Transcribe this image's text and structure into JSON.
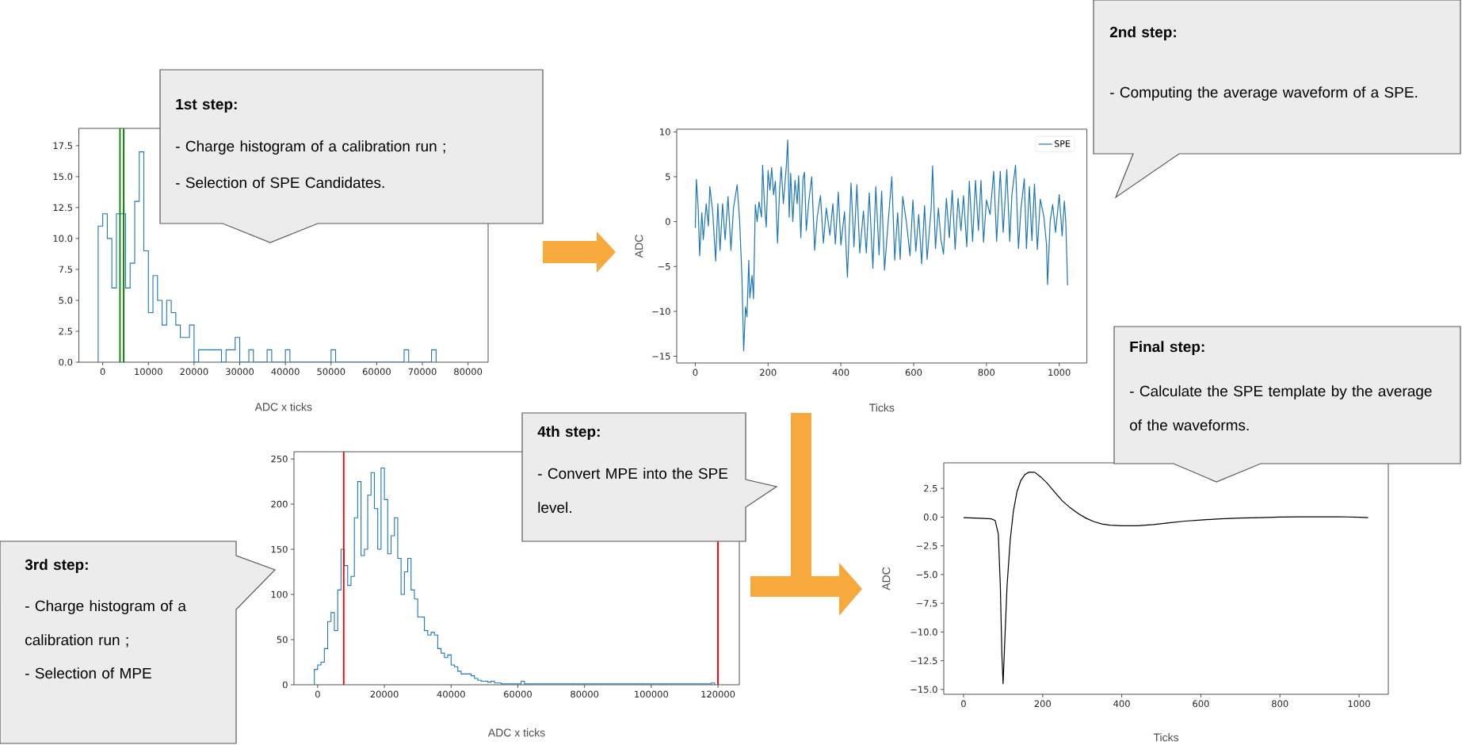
{
  "chart_data": [
    {
      "type": "histogram",
      "xlabel": "ADC x ticks",
      "color": "#1f77b4",
      "bins": [
        -1000,
        0,
        1000,
        2000,
        3000,
        4000,
        5000,
        6000,
        7000,
        8000,
        9000,
        10000,
        11000,
        12000,
        13000,
        14000,
        15000,
        16000,
        17000,
        18000,
        19000,
        20000,
        21000,
        22000,
        23000,
        24000,
        25000,
        26000,
        27000,
        28000,
        29000,
        30000,
        31000,
        32000,
        33000,
        34000,
        35000,
        36000,
        37000,
        38000,
        39000,
        40000,
        41000,
        42000,
        43000,
        44000,
        45000,
        46000,
        47000,
        48000,
        49000,
        50000,
        51000,
        52000,
        53000,
        54000,
        55000,
        56000,
        57000,
        58000,
        59000,
        60000,
        61000,
        62000,
        63000,
        64000,
        65000,
        66000,
        67000,
        68000,
        69000,
        70000,
        71000,
        72000,
        73000
      ],
      "values": [
        11,
        12,
        10,
        6,
        12,
        12,
        6,
        8,
        13,
        17,
        9,
        4,
        7,
        5,
        3,
        5,
        4,
        3,
        2,
        2,
        3,
        0,
        1,
        1,
        1,
        1,
        1,
        0,
        1,
        1,
        2,
        0,
        0,
        1,
        0,
        0,
        0,
        1,
        0,
        0,
        0,
        1,
        0,
        0,
        0,
        0,
        0,
        0,
        0,
        0,
        0,
        1,
        0,
        0,
        0,
        0,
        0,
        0,
        0,
        0,
        0,
        0,
        0,
        0,
        0,
        0,
        0,
        1,
        0,
        0,
        0,
        0,
        0,
        1
      ],
      "xlim": [
        -5230,
        84400
      ],
      "ylim": [
        0,
        18.9
      ],
      "xticks": [
        0,
        10000,
        20000,
        30000,
        40000,
        50000,
        60000,
        70000,
        80000
      ],
      "yticks": [
        {
          "value": 0,
          "label": "0.0"
        },
        2.5,
        {
          "value": 5,
          "label": "5.0"
        },
        7.5,
        {
          "value": 10,
          "label": "10.0"
        },
        12.5,
        {
          "value": 15,
          "label": "15.0"
        },
        17.5
      ],
      "ref_lines": [
        {
          "axis": "x",
          "value": 3800,
          "color": "#008000"
        },
        {
          "axis": "x",
          "value": 4600,
          "color": "#008000"
        }
      ],
      "annotations": [
        "1st step:",
        "- Charge histogram of a calibration run ;",
        "- Selection of SPE Candidates."
      ]
    },
    {
      "type": "line",
      "xlabel": "Ticks",
      "ylabel": "ADC",
      "legend": "top right",
      "x": [
        0,
        3,
        8,
        12,
        18,
        22,
        30,
        36,
        40,
        48,
        56,
        62,
        68,
        75,
        82,
        90,
        98,
        105,
        115,
        122,
        128,
        133,
        138,
        142,
        147,
        150,
        156,
        160,
        165,
        170,
        175,
        182,
        185,
        190,
        195,
        200,
        205,
        210,
        215,
        220,
        226,
        232,
        236,
        242,
        250,
        254,
        258,
        262,
        268,
        274,
        280,
        284,
        290,
        296,
        300,
        305,
        312,
        320,
        328,
        335,
        344,
        352,
        360,
        370,
        378,
        385,
        393,
        400,
        410,
        418,
        428,
        436,
        444,
        452,
        462,
        470,
        478,
        488,
        496,
        505,
        512,
        520,
        530,
        540,
        548,
        556,
        563,
        570,
        580,
        590,
        598,
        606,
        614,
        622,
        630,
        637,
        648,
        652,
        660,
        668,
        675,
        682,
        690,
        698,
        706,
        714,
        722,
        730,
        737,
        746,
        753,
        762,
        770,
        778,
        785,
        792,
        800,
        810,
        820,
        828,
        838,
        846,
        856,
        864,
        870,
        880,
        888,
        895,
        904,
        910,
        918,
        925,
        932,
        940,
        948,
        958,
        965,
        968,
        975,
        982,
        990,
        1000,
        1008,
        1014,
        1018,
        1023
      ],
      "series": [
        {
          "name": "SPE",
          "color": "#1f77b4",
          "values": [
            -0.7,
            4.7,
            1.5,
            -3.8,
            1.0,
            -2.0,
            2.0,
            -0.5,
            3.9,
            1.0,
            -4.4,
            2.0,
            -3.2,
            2.0,
            -2.0,
            2.8,
            -3.2,
            1.5,
            4.1,
            0,
            -6,
            -14.4,
            -9.5,
            -10.6,
            -4.3,
            -8.5,
            -6,
            -8.6,
            1.9,
            0,
            2.2,
            0.5,
            6.3,
            2,
            -0.6,
            5.7,
            3.5,
            6.0,
            3,
            4.5,
            -2.4,
            3.8,
            6.1,
            2,
            6.1,
            9.1,
            0.5,
            5.4,
            0,
            4.6,
            2,
            5.1,
            -1.8,
            4.8,
            5.5,
            -1,
            2.3,
            5.0,
            -3.2,
            0.5,
            2.9,
            -2.4,
            1.5,
            -1.5,
            2,
            -2.5,
            3.3,
            -2.6,
            1.1,
            -6.2,
            4.3,
            -2.8,
            4.1,
            -3.5,
            1.2,
            -3.5,
            3.2,
            -5.2,
            3.9,
            -3.7,
            3.4,
            -5.4,
            0,
            5.0,
            -4.3,
            1.0,
            -4.2,
            2.8,
            0,
            -3.8,
            2.4,
            -3.3,
            0.8,
            -4.7,
            1.8,
            -4.2,
            1.4,
            6.2,
            -3,
            1.5,
            -2,
            -3.6,
            2.6,
            -1.8,
            3.5,
            -3.1,
            2.6,
            -1.0,
            2.9,
            -2.8,
            4.5,
            -2.2,
            4.6,
            -1.0,
            4.6,
            -2.3,
            2.4,
            0.8,
            5.6,
            -2.2,
            5.6,
            -1.2,
            5.8,
            -2.2,
            3,
            6.3,
            -3.0,
            1.5,
            4.8,
            -3.0,
            3.9,
            -2.1,
            4.2,
            -3.1,
            2.5,
            0.5,
            -2.5,
            -7.0,
            0,
            1.9,
            -1.2,
            3.0,
            -1.6,
            2.3,
            0,
            -7.1
          ]
        }
      ],
      "xlim": [
        -51,
        1076
      ],
      "ylim": [
        -15.75,
        10.3
      ],
      "xticks": [
        0,
        200,
        400,
        600,
        800,
        1000
      ],
      "yticks": [
        {
          "value": -15,
          "label": "−15"
        },
        {
          "value": -10,
          "label": "−10"
        },
        {
          "value": -5,
          "label": "−5"
        },
        0,
        5,
        10
      ],
      "annotations": [
        "2nd step:",
        "- Computing the average waveform of a SPE."
      ]
    },
    {
      "type": "histogram",
      "xlabel": "ADC x ticks",
      "color": "#1f77b4",
      "bins": [
        -1000,
        0,
        1000,
        2000,
        3000,
        4000,
        5000,
        6000,
        7000,
        8000,
        9000,
        10000,
        11000,
        12000,
        13000,
        14000,
        15000,
        16000,
        17000,
        18000,
        19000,
        20000,
        21000,
        22000,
        23000,
        24000,
        25000,
        26000,
        27000,
        28000,
        29000,
        30000,
        31000,
        32000,
        33000,
        34000,
        35000,
        36000,
        37000,
        38000,
        39000,
        40000,
        41000,
        42000,
        43000,
        44000,
        45000,
        46000,
        47000,
        48000,
        49000,
        50000,
        51000,
        52000,
        53000,
        54000,
        55000,
        56000,
        61000,
        62000,
        118000,
        119000
      ],
      "values": [
        17,
        22,
        25,
        40,
        70,
        80,
        60,
        105,
        150,
        132,
        110,
        120,
        185,
        225,
        143,
        150,
        210,
        235,
        195,
        150,
        240,
        205,
        145,
        165,
        185,
        140,
        100,
        125,
        140,
        105,
        95,
        75,
        75,
        60,
        55,
        58,
        55,
        40,
        35,
        30,
        33,
        22,
        20,
        15,
        12,
        12,
        12,
        10,
        7,
        5,
        4,
        4,
        3,
        4,
        2,
        2,
        1,
        1,
        4,
        1,
        2
      ],
      "xlim": [
        -7100,
        126400
      ],
      "ylim": [
        0,
        258
      ],
      "xticks": [
        0,
        20000,
        40000,
        60000,
        80000,
        100000,
        120000
      ],
      "yticks": [
        0,
        50,
        100,
        150,
        200,
        250
      ],
      "ref_lines": [
        {
          "axis": "x",
          "value": 7800,
          "color": "#ff0000"
        },
        {
          "axis": "x",
          "value": 120000,
          "color": "#ff0000"
        }
      ],
      "annotations": [
        "3rd step:",
        "- Charge histogram of a calibration run ;",
        "- Selection of MPE",
        "4th step:",
        "- Convert MPE into the SPE level."
      ]
    },
    {
      "type": "line",
      "xlabel": "Ticks",
      "ylabel": "ADC",
      "color": "#000000",
      "x": [
        0,
        40,
        70,
        80,
        88,
        93,
        97,
        100,
        104,
        110,
        118,
        126,
        135,
        145,
        155,
        165,
        180,
        195,
        210,
        230,
        250,
        270,
        290,
        310,
        330,
        350,
        370,
        400,
        440,
        480,
        520,
        560,
        600,
        650,
        700,
        750,
        800,
        850,
        900,
        950,
        1000,
        1023
      ],
      "values": [
        -0.05,
        -0.1,
        -0.15,
        -0.3,
        -1.5,
        -6,
        -12,
        -14.5,
        -11,
        -6,
        -2,
        0.5,
        2.2,
        3.2,
        3.7,
        3.9,
        3.9,
        3.5,
        3.0,
        2.2,
        1.4,
        0.8,
        0.3,
        -0.1,
        -0.4,
        -0.6,
        -0.7,
        -0.75,
        -0.75,
        -0.65,
        -0.5,
        -0.35,
        -0.25,
        -0.15,
        -0.08,
        -0.05,
        0,
        0.02,
        0.02,
        0.03,
        -0.02,
        -0.05
      ],
      "xlim": [
        -50,
        1074
      ],
      "ylim": [
        -15.42,
        4.72
      ],
      "xticks": [
        0,
        200,
        400,
        600,
        800,
        1000
      ],
      "yticks": [
        {
          "value": -15,
          "label": "−15.0"
        },
        {
          "value": -12.5,
          "label": "−12.5"
        },
        {
          "value": -10,
          "label": "−10.0"
        },
        {
          "value": -7.5,
          "label": "−7.5"
        },
        {
          "value": -5,
          "label": "−5.0"
        },
        {
          "value": -2.5,
          "label": "−2.5"
        },
        {
          "value": 0,
          "label": "0.0"
        },
        2.5
      ],
      "annotations": [
        "Final step:",
        "- Calculate the SPE template by the average of the waveforms."
      ]
    }
  ]
}
